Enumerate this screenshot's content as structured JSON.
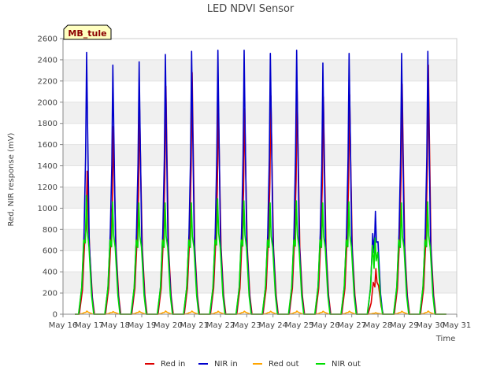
{
  "chart_data": {
    "type": "line",
    "title": "LED NDVI Sensor",
    "site_label": "MB_tule",
    "xlabel": "Time",
    "ylabel": "Red, NIR response (mV)",
    "ylim": [
      0,
      2600
    ],
    "xlim": [
      "2024-05-16",
      "2024-05-31"
    ],
    "x_tick_labels": [
      "May 16",
      "May 17",
      "May 18",
      "May 19",
      "May 20",
      "May 21",
      "May 22",
      "May 23",
      "May 24",
      "May 25",
      "May 26",
      "May 27",
      "May 28",
      "May 29",
      "May 30",
      "May 31"
    ],
    "y_ticks": [
      0,
      200,
      400,
      600,
      800,
      1000,
      1200,
      1400,
      1600,
      1800,
      2000,
      2200,
      2400,
      2600
    ],
    "grid": "horizontal bands",
    "legend_position": "bottom",
    "series": [
      {
        "name": "Red in",
        "color": "#dd0000",
        "daily_peaks": [
          1350,
          1770,
          1930,
          2150,
          2280,
          1970,
          1940,
          2060,
          2110,
          2050,
          2070,
          430,
          2170,
          2350
        ],
        "shoulder": [
          650,
          700,
          700,
          700,
          700,
          700,
          700,
          700,
          700,
          700,
          700,
          300,
          700,
          700
        ]
      },
      {
        "name": "NIR in",
        "color": "#0000cc",
        "daily_peaks": [
          2470,
          2350,
          2380,
          2450,
          2480,
          2490,
          2490,
          2460,
          2490,
          2370,
          2460,
          970,
          2460,
          2480
        ],
        "shoulder": [
          750,
          760,
          760,
          760,
          760,
          760,
          760,
          760,
          760,
          760,
          760,
          760,
          760,
          760
        ]
      },
      {
        "name": "Red out",
        "color": "#ffa500",
        "daily_peaks": [
          30,
          25,
          28,
          30,
          30,
          28,
          28,
          28,
          30,
          28,
          28,
          15,
          28,
          30
        ],
        "shoulder": [
          15,
          15,
          15,
          15,
          15,
          15,
          15,
          15,
          15,
          15,
          15,
          8,
          15,
          15
        ]
      },
      {
        "name": "NIR out",
        "color": "#00dd00",
        "daily_peaks": [
          1120,
          1060,
          1050,
          1050,
          1050,
          1090,
          1070,
          1050,
          1070,
          1050,
          1060,
          720,
          1050,
          1060
        ],
        "shoulder": [
          700,
          700,
          700,
          700,
          700,
          700,
          700,
          700,
          700,
          700,
          700,
          650,
          700,
          700
        ]
      }
    ]
  }
}
